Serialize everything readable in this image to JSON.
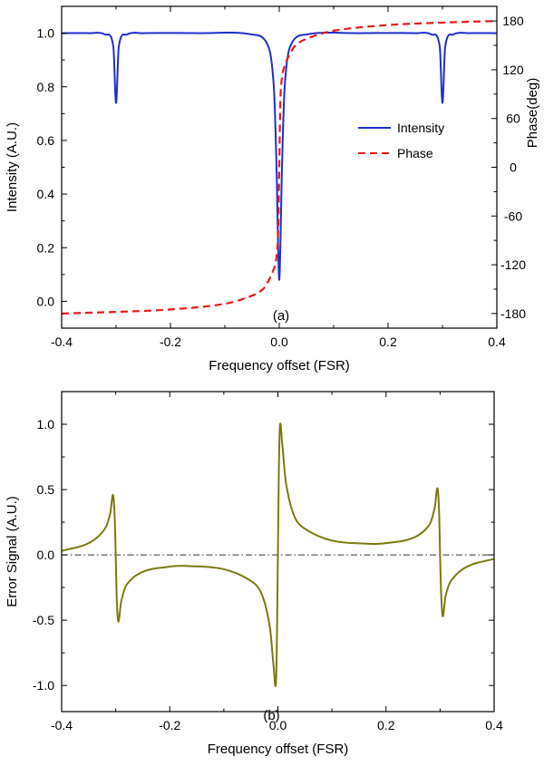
{
  "chart_data": [
    {
      "panel": "(a)",
      "type": "line",
      "xlabel": "Frequency offset (FSR)",
      "ylabel": "Intensity (A.U.)",
      "y2label": "Phase(deg)",
      "xlim": [
        -0.4,
        0.4
      ],
      "ylim": [
        -0.1,
        1.1
      ],
      "y2lim": [
        -198,
        198
      ],
      "xticks": [
        "-0.4",
        "-0.2",
        "0.0",
        "0.2",
        "0.4"
      ],
      "yticks": [
        "0.0",
        "0.2",
        "0.4",
        "0.6",
        "0.8",
        "1.0"
      ],
      "y2ticks": [
        "-180",
        "-120",
        "-60",
        "0",
        "60",
        "120",
        "180"
      ],
      "legend_position": "center-right",
      "series": [
        {
          "name": "Intensity",
          "color": "#1f2fd0",
          "line_style": "solid",
          "axis": "left",
          "x": [
            -0.4,
            -0.35,
            -0.32,
            -0.305,
            -0.3,
            -0.295,
            -0.28,
            -0.25,
            -0.15,
            -0.05,
            -0.02,
            -0.01,
            -0.005,
            -0.002,
            0.0,
            0.002,
            0.005,
            0.01,
            0.02,
            0.05,
            0.15,
            0.25,
            0.28,
            0.295,
            0.3,
            0.305,
            0.32,
            0.35,
            0.4
          ],
          "values": [
            1.0,
            1.0,
            0.995,
            0.95,
            0.74,
            0.95,
            0.995,
            1.0,
            1.0,
            0.995,
            0.95,
            0.8,
            0.5,
            0.2,
            0.08,
            0.2,
            0.5,
            0.8,
            0.95,
            0.995,
            1.0,
            1.0,
            0.995,
            0.95,
            0.74,
            0.95,
            0.995,
            1.0,
            1.0
          ]
        },
        {
          "name": "Phase",
          "color": "#e8191b",
          "line_style": "dashed",
          "axis": "right",
          "x": [
            -0.4,
            -0.3,
            -0.2,
            -0.1,
            -0.05,
            -0.03,
            -0.02,
            -0.01,
            -0.005,
            -0.002,
            0.0,
            0.002,
            0.005,
            0.01,
            0.02,
            0.03,
            0.05,
            0.1,
            0.2,
            0.3,
            0.4
          ],
          "values": [
            -180,
            -178,
            -175,
            -168,
            -158,
            -150,
            -140,
            -125,
            -110,
            -80,
            0,
            80,
            110,
            125,
            140,
            150,
            158,
            168,
            175,
            178,
            180
          ]
        }
      ]
    },
    {
      "panel": "(b)",
      "type": "line",
      "xlabel": "Frequency offset (FSR)",
      "ylabel": "Error Signal (A.U.)",
      "xlim": [
        -0.4,
        0.4
      ],
      "ylim": [
        -1.2,
        1.25
      ],
      "xticks": [
        "-0.4",
        "-0.2",
        "0.0",
        "0.2",
        "0.4"
      ],
      "yticks": [
        "-1.0",
        "-0.5",
        "0.0",
        "0.5",
        "1.0"
      ],
      "zero_line": true,
      "series": [
        {
          "color": "#7b7a10",
          "line_style": "solid",
          "x": [
            -0.4,
            -0.35,
            -0.32,
            -0.31,
            -0.305,
            -0.302,
            -0.3,
            -0.298,
            -0.295,
            -0.29,
            -0.28,
            -0.25,
            -0.2,
            -0.17,
            -0.1,
            -0.05,
            -0.03,
            -0.015,
            -0.008,
            -0.004,
            -0.002,
            0.0,
            0.002,
            0.004,
            0.008,
            0.015,
            0.03,
            0.05,
            0.1,
            0.17,
            0.2,
            0.25,
            0.28,
            0.29,
            0.295,
            0.298,
            0.3,
            0.302,
            0.305,
            0.31,
            0.32,
            0.35,
            0.4
          ],
          "values": [
            0.03,
            0.09,
            0.2,
            0.32,
            0.46,
            0.3,
            0.0,
            -0.35,
            -0.51,
            -0.36,
            -0.23,
            -0.13,
            -0.09,
            -0.085,
            -0.11,
            -0.2,
            -0.3,
            -0.55,
            -0.85,
            -1.0,
            -0.7,
            0.0,
            0.7,
            1.0,
            0.85,
            0.55,
            0.3,
            0.2,
            0.11,
            0.085,
            0.09,
            0.13,
            0.23,
            0.36,
            0.51,
            0.35,
            0.0,
            -0.3,
            -0.47,
            -0.32,
            -0.2,
            -0.09,
            -0.03
          ]
        }
      ]
    }
  ]
}
